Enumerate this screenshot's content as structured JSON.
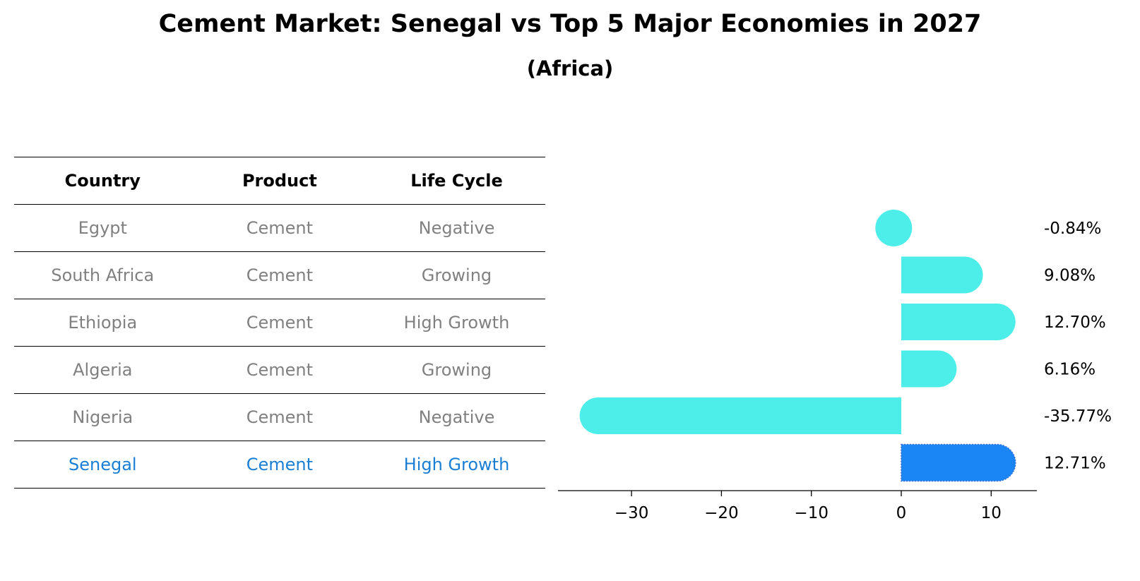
{
  "title": "Cement Market: Senegal vs Top 5 Major Economies in 2027",
  "subtitle": "(Africa)",
  "table": {
    "headers": [
      "Country",
      "Product",
      "Life Cycle"
    ],
    "rows": [
      [
        "Egypt",
        "Cement",
        "Negative"
      ],
      [
        "South Africa",
        "Cement",
        "Growing"
      ],
      [
        "Ethiopia",
        "Cement",
        "High Growth"
      ],
      [
        "Algeria",
        "Cement",
        "Growing"
      ],
      [
        "Nigeria",
        "Cement",
        "Negative"
      ],
      [
        "Senegal",
        "Cement",
        "High Growth"
      ]
    ],
    "highlight_row": "Senegal"
  },
  "chart_data": {
    "type": "bar",
    "orientation": "horizontal",
    "categories": [
      "Egypt",
      "South Africa",
      "Ethiopia",
      "Algeria",
      "Nigeria",
      "Senegal"
    ],
    "values": [
      -0.84,
      9.08,
      12.7,
      6.16,
      -35.77,
      12.71
    ],
    "data_labels": [
      "-0.84%",
      "9.08%",
      "12.70%",
      "6.16%",
      "-35.77%",
      "12.71%"
    ],
    "xlim": [
      -38,
      15
    ],
    "xticks": [
      -30,
      -20,
      -10,
      0,
      10
    ],
    "xtick_labels": [
      "−30",
      "−20",
      "−10",
      "0",
      "10"
    ],
    "colors": {
      "default": "#4deeea",
      "highlight": "#1a85f5"
    },
    "highlight": "Senegal",
    "grid": false,
    "legend": "none"
  }
}
